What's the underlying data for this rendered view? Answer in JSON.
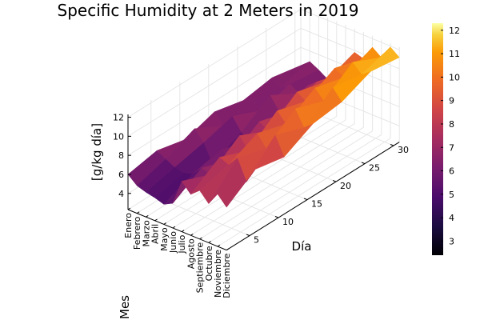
{
  "chart_data": {
    "type": "surface",
    "title": "Specific Humidity at 2 Meters in 2019",
    "xlabel": "Mes",
    "ylabel": "Día",
    "zlabel": "[g/kg día]",
    "x_categories": [
      "Enero",
      "Febrero",
      "Marzo",
      "Abril",
      "Mayo",
      "Junio",
      "Julio",
      "Agosto",
      "Septiembre",
      "Octubre",
      "Noviembre",
      "Diciembre"
    ],
    "y_ticks": [
      5,
      10,
      15,
      20,
      25,
      30
    ],
    "y_range": [
      1,
      31
    ],
    "z_ticks": [
      4,
      6,
      8,
      10,
      12
    ],
    "z_range": [
      2.3,
      12.3
    ],
    "colorbar": {
      "colormap": "inferno",
      "range": [
        2.4,
        12.3
      ],
      "ticks": [
        3,
        4,
        5,
        6,
        7,
        8,
        9,
        10,
        11,
        12
      ]
    },
    "days": [
      1,
      6,
      11,
      16,
      21,
      26,
      31
    ],
    "z": [
      [
        6.0,
        6.6,
        5.9,
        6.9,
        6.2,
        6.7,
        6.1
      ],
      [
        5.2,
        6.1,
        7.4,
        5.8,
        6.6,
        6.0,
        6.9
      ],
      [
        4.9,
        5.6,
        6.3,
        7.2,
        5.9,
        6.8,
        6.4
      ],
      [
        4.7,
        5.4,
        4.4,
        5.9,
        7.9,
        6.2,
        5.8
      ],
      [
        4.4,
        5.7,
        6.4,
        5.2,
        6.6,
        7.4,
        6.1
      ],
      [
        4.9,
        6.7,
        5.7,
        7.8,
        6.9,
        8.2,
        7.3
      ],
      [
        7.6,
        6.4,
        8.6,
        7.2,
        9.4,
        8.6,
        9.8
      ],
      [
        6.6,
        8.6,
        7.4,
        9.7,
        8.8,
        10.4,
        9.5
      ],
      [
        7.4,
        8.2,
        9.6,
        8.7,
        10.6,
        9.8,
        11.1
      ],
      [
        6.4,
        9.3,
        8.4,
        10.7,
        9.6,
        11.8,
        10.4
      ],
      [
        7.8,
        7.2,
        10.2,
        9.1,
        11.4,
        10.9,
        11.9
      ],
      [
        6.8,
        8.9,
        8.3,
        9.9,
        10.3,
        11.6,
        11.2
      ]
    ]
  }
}
